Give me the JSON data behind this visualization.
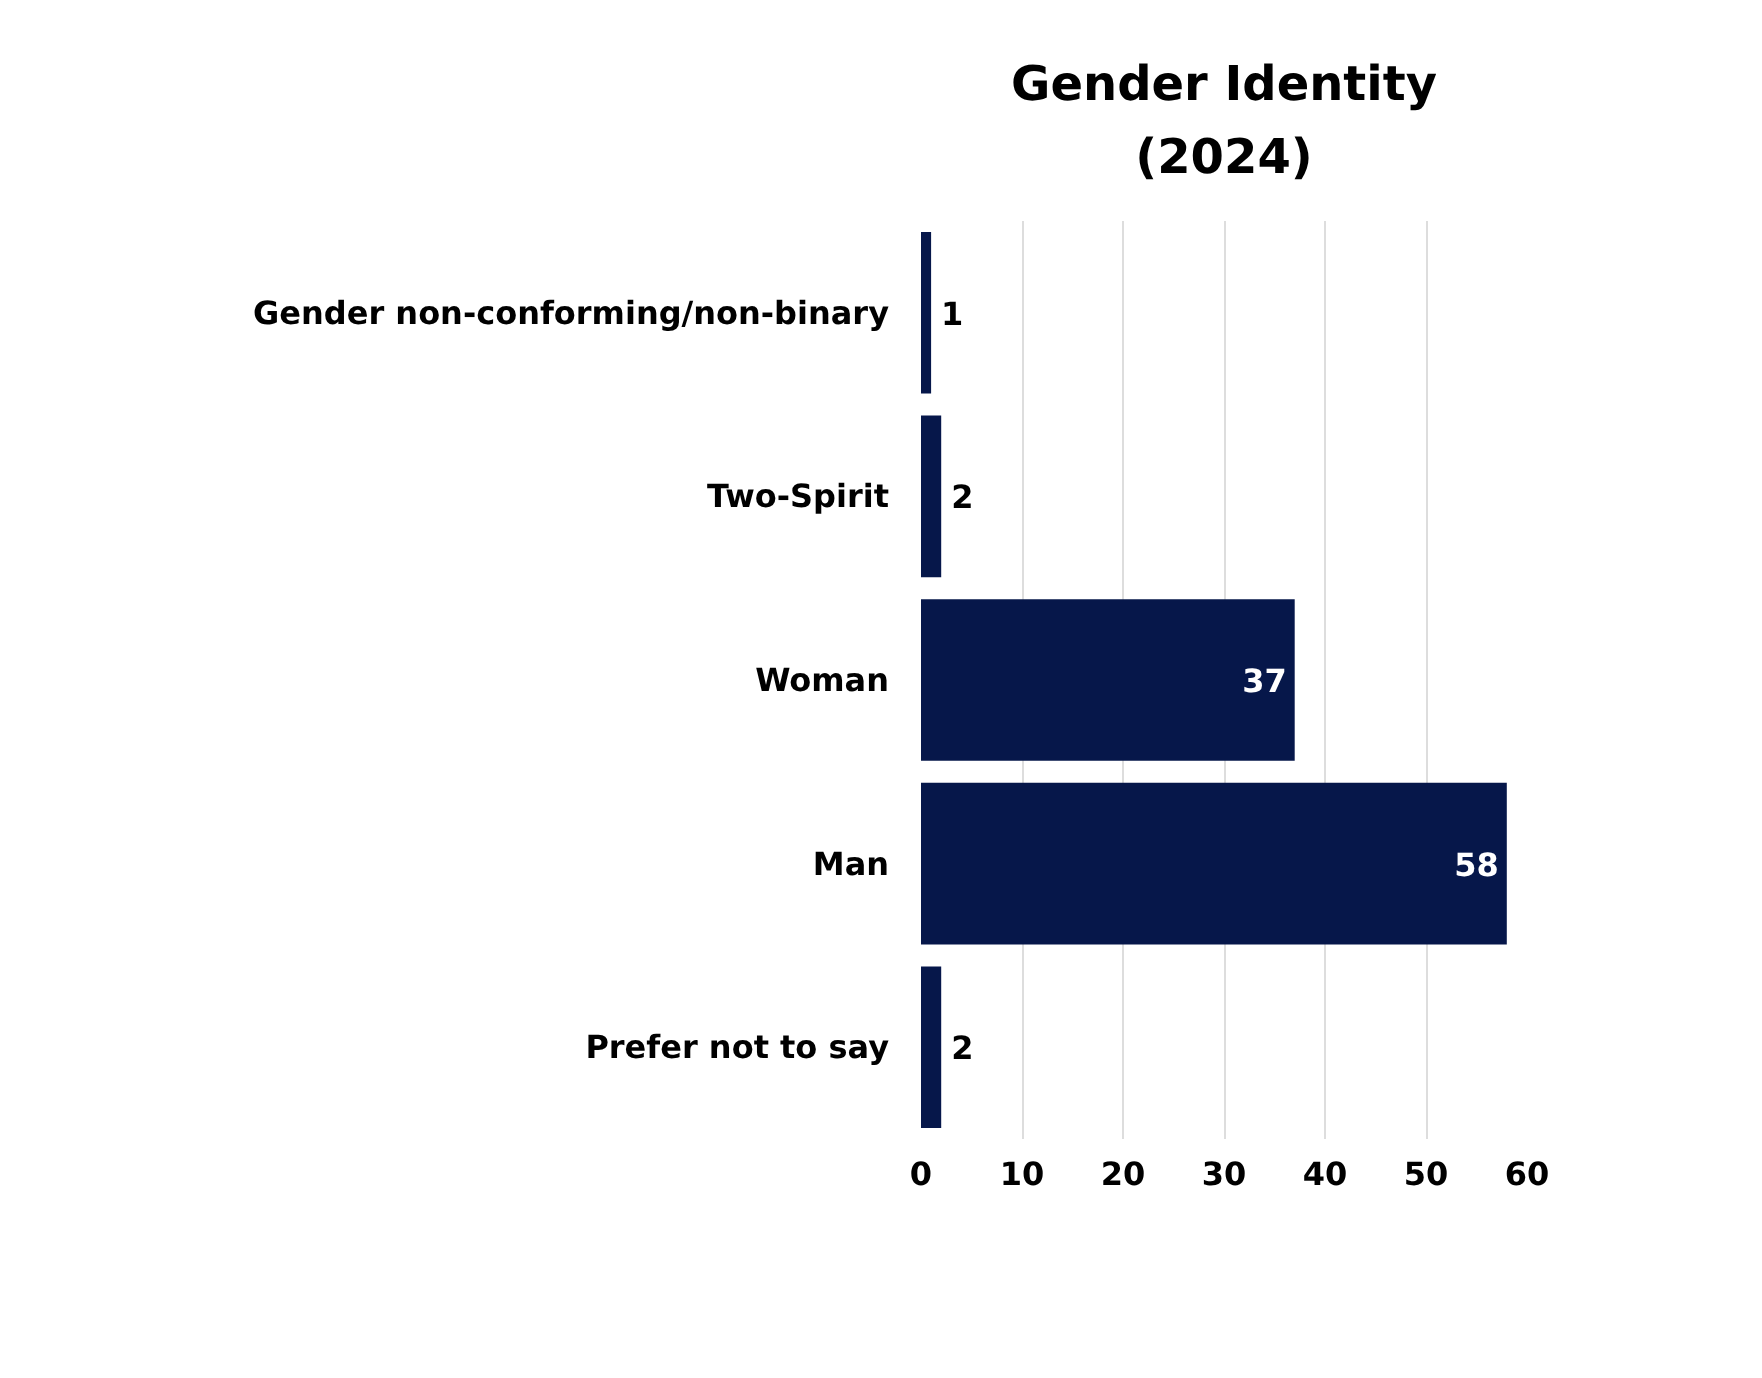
{
  "chart_data": {
    "type": "bar",
    "orientation": "horizontal",
    "title": "Gender Identity\n(2024)",
    "categories": [
      "Gender non-conforming/non-binary",
      "Two-Spirit",
      "Woman",
      "Man",
      "Prefer not to say"
    ],
    "values": [
      1,
      2,
      37,
      58,
      2
    ],
    "color": "#06174a",
    "data_labels": true,
    "xlim": [
      0,
      60
    ],
    "xticks": [
      0,
      10,
      20,
      30,
      40,
      50,
      60
    ],
    "grid": "x"
  }
}
